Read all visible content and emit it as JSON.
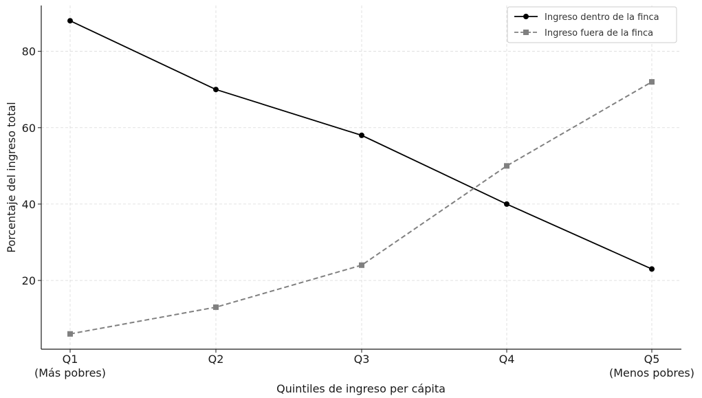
{
  "chart_data": {
    "type": "line",
    "title": "",
    "xlabel": "Quintiles de ingreso per cápita",
    "ylabel": "Porcentaje del ingreso total",
    "categories": [
      "Q1",
      "Q2",
      "Q3",
      "Q4",
      "Q5"
    ],
    "category_sublabels": [
      "(Más pobres)",
      "",
      "",
      "",
      "(Menos pobres)"
    ],
    "ylim": [
      2,
      92
    ],
    "yticks": [
      20,
      40,
      60,
      80
    ],
    "grid": true,
    "legend_position": "top-right",
    "series": [
      {
        "name": "Ingreso dentro de la finca",
        "values": [
          88,
          70,
          58,
          40,
          23
        ],
        "color": "#000000",
        "line_style": "solid",
        "marker": "circle"
      },
      {
        "name": "Ingreso fuera de la finca",
        "values": [
          6,
          13,
          24,
          50,
          72
        ],
        "color": "#808080",
        "line_style": "dashed",
        "marker": "square"
      }
    ]
  }
}
